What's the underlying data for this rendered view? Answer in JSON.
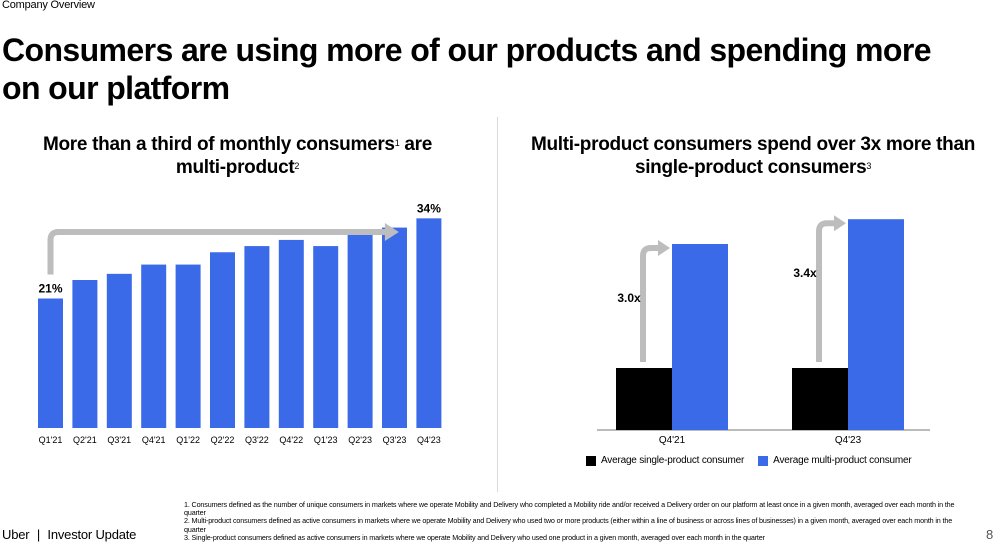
{
  "header": {
    "section": "Company Overview",
    "title": "Consumers are using more of our products and spending more on our platform"
  },
  "left_chart": {
    "title_part1": "More than a third of monthly consumers",
    "title_sup1": "1",
    "title_part2": " are multi-product",
    "title_sup2": "2"
  },
  "right_chart": {
    "title_part1": "Multi-product consumers spend over 3x more than single-product consumers",
    "title_sup1": "3"
  },
  "chart_data": [
    {
      "type": "bar",
      "title": "More than a third of monthly consumers are multi-product",
      "categories": [
        "Q1'21",
        "Q2'21",
        "Q3'21",
        "Q4'21",
        "Q1'22",
        "Q2'22",
        "Q3'22",
        "Q4'22",
        "Q1'23",
        "Q2'23",
        "Q3'23",
        "Q4'23"
      ],
      "values": [
        21,
        24,
        25,
        26.5,
        26.5,
        28.5,
        29.5,
        30.5,
        29.5,
        31.5,
        32.5,
        34
      ],
      "data_labels": {
        "0": "21%",
        "11": "34%"
      },
      "ylim": [
        0,
        36
      ],
      "color": "#3b6ae8",
      "arrow_color": "#bdbdbd"
    },
    {
      "type": "bar",
      "title": "Multi-product consumers spend over 3x more than single-product consumers",
      "categories": [
        "Q4'21",
        "Q4'23"
      ],
      "series": [
        {
          "name": "Average single-product consumer",
          "values": [
            1.0,
            1.0
          ],
          "color": "#000000"
        },
        {
          "name": "Average multi-product consumer",
          "values": [
            3.0,
            3.4
          ],
          "color": "#3b6ae8"
        }
      ],
      "multiplier_labels": [
        "3.0x",
        "3.4x"
      ],
      "ylim": [
        0,
        3.5
      ],
      "legend": "bottom"
    }
  ],
  "footnotes": [
    "1. Consumers defined as the number of unique consumers in markets where we operate Mobility and Delivery who completed a Mobility ride and/or received a Delivery order on our platform at least once in a given month, averaged over each month in the quarter",
    "2. Multi-product consumers defined as active consumers in markets where we operate Mobility and Delivery who used two or more products (either within a line of business or across lines of businesses) in a given month, averaged over each month in the quarter",
    "3. Single-product consumers defined as active consumers in markets where we operate Mobility and Delivery who used one product in a given month, averaged over each month in the quarter"
  ],
  "footer": {
    "brand": "Uber",
    "separator": "|",
    "label": "Investor Update",
    "page_number": "8"
  }
}
